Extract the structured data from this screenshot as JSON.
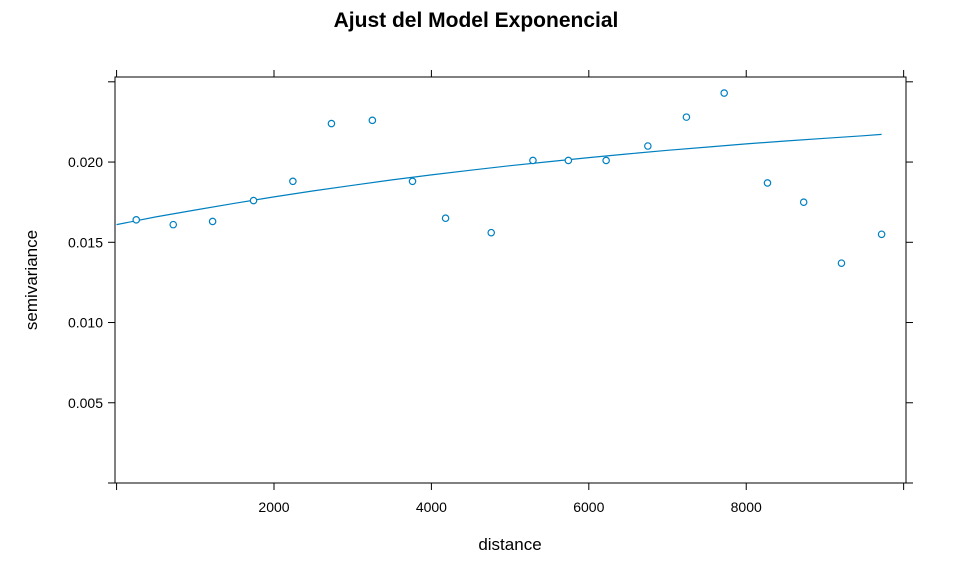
{
  "chart_data": {
    "type": "scatter",
    "title": "Ajust del Model Exponencial",
    "xlabel": "distance",
    "ylabel": "semivariance",
    "xlim": [
      -20,
      10030
    ],
    "ylim": [
      0,
      0.0253
    ],
    "x_ticks": [
      2000,
      4000,
      6000,
      8000
    ],
    "x_tick_labels": [
      "2000",
      "4000",
      "6000",
      "8000"
    ],
    "y_ticks": [
      0.005,
      0.01,
      0.015,
      0.02
    ],
    "y_tick_labels": [
      "0.005",
      "0.010",
      "0.015",
      "0.020"
    ],
    "grid": false,
    "series": [
      {
        "type": "scatter",
        "color": "#0080c0",
        "marker": "open-circle",
        "points": [
          {
            "x": 250,
            "y": 0.0164
          },
          {
            "x": 720,
            "y": 0.0161
          },
          {
            "x": 1220,
            "y": 0.0163
          },
          {
            "x": 1740,
            "y": 0.0176
          },
          {
            "x": 2240,
            "y": 0.0188
          },
          {
            "x": 2730,
            "y": 0.0224
          },
          {
            "x": 3250,
            "y": 0.0226
          },
          {
            "x": 3760,
            "y": 0.0188
          },
          {
            "x": 4180,
            "y": 0.0165
          },
          {
            "x": 4760,
            "y": 0.0156
          },
          {
            "x": 5290,
            "y": 0.0201
          },
          {
            "x": 5740,
            "y": 0.0201
          },
          {
            "x": 6220,
            "y": 0.0201
          },
          {
            "x": 6750,
            "y": 0.021
          },
          {
            "x": 7240,
            "y": 0.0228
          },
          {
            "x": 7720,
            "y": 0.0243
          },
          {
            "x": 8270,
            "y": 0.0187
          },
          {
            "x": 8730,
            "y": 0.0175
          },
          {
            "x": 9210,
            "y": 0.0137
          },
          {
            "x": 9720,
            "y": 0.0155
          }
        ]
      },
      {
        "type": "line",
        "color": "#0080c0",
        "x": [
          0,
          500,
          1000,
          1500,
          2000,
          2500,
          3000,
          3500,
          4000,
          4500,
          5000,
          5500,
          6000,
          6500,
          7000,
          7500,
          8000,
          8500,
          9000,
          9500,
          9720
        ],
        "values": [
          0.0161,
          0.01658,
          0.01701,
          0.01743,
          0.01783,
          0.0182,
          0.01855,
          0.01889,
          0.0192,
          0.01949,
          0.01977,
          0.02003,
          0.02028,
          0.02051,
          0.02073,
          0.02093,
          0.02113,
          0.02131,
          0.02148,
          0.02164,
          0.02172
        ]
      }
    ]
  }
}
